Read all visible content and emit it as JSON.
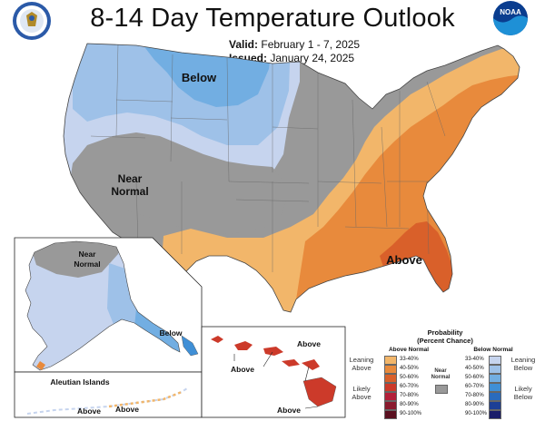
{
  "header": {
    "title": "8-14 Day Temperature Outlook",
    "valid_label": "Valid:",
    "valid_value": "February 1 - 7, 2025",
    "issued_label": "Issued:",
    "issued_value": "January 24, 2025"
  },
  "logos": {
    "left": "Department of Commerce seal",
    "right": "NOAA"
  },
  "map_labels": {
    "below_north": "Below",
    "near_normal_line1": "Near",
    "near_normal_line2": "Normal",
    "above_southeast": "Above",
    "alaska_near_line1": "Near",
    "alaska_near_line2": "Normal",
    "alaska_below": "Below",
    "aleutian_title": "Aleutian Islands",
    "aleutian_above_1": "Above",
    "aleutian_above_2": "Above",
    "hawaii_above_1": "Above",
    "hawaii_above_2": "Above",
    "hawaii_above_3": "Above"
  },
  "legend": {
    "title_line1": "Probability",
    "title_line2": "(Percent Chance)",
    "above_header": "Above Normal",
    "below_header": "Below Normal",
    "leaning_above_1": "Leaning",
    "leaning_above_2": "Above",
    "likely_above_1": "Likely",
    "likely_above_2": "Above",
    "near_normal_1": "Near",
    "near_normal_2": "Normal",
    "leaning_below_1": "Leaning",
    "leaning_below_2": "Below",
    "likely_below_1": "Likely",
    "likely_below_2": "Below",
    "above_levels": [
      "33-40%",
      "40-50%",
      "50-60%",
      "60-70%",
      "70-80%",
      "80-90%",
      "90-100%"
    ],
    "below_levels": [
      "33-40%",
      "40-50%",
      "50-60%",
      "60-70%",
      "70-80%",
      "80-90%",
      "90-100%"
    ],
    "above_colors": [
      "#f2b66a",
      "#e88a3c",
      "#d9602a",
      "#cc3a2a",
      "#b3203a",
      "#8a1a2e",
      "#5a1020"
    ],
    "below_colors": [
      "#c6d4ee",
      "#9ec1e8",
      "#72aee2",
      "#3f8fd6",
      "#2a6bbd",
      "#1d3f96",
      "#1a1d6a"
    ],
    "near_color": "#999999"
  }
}
